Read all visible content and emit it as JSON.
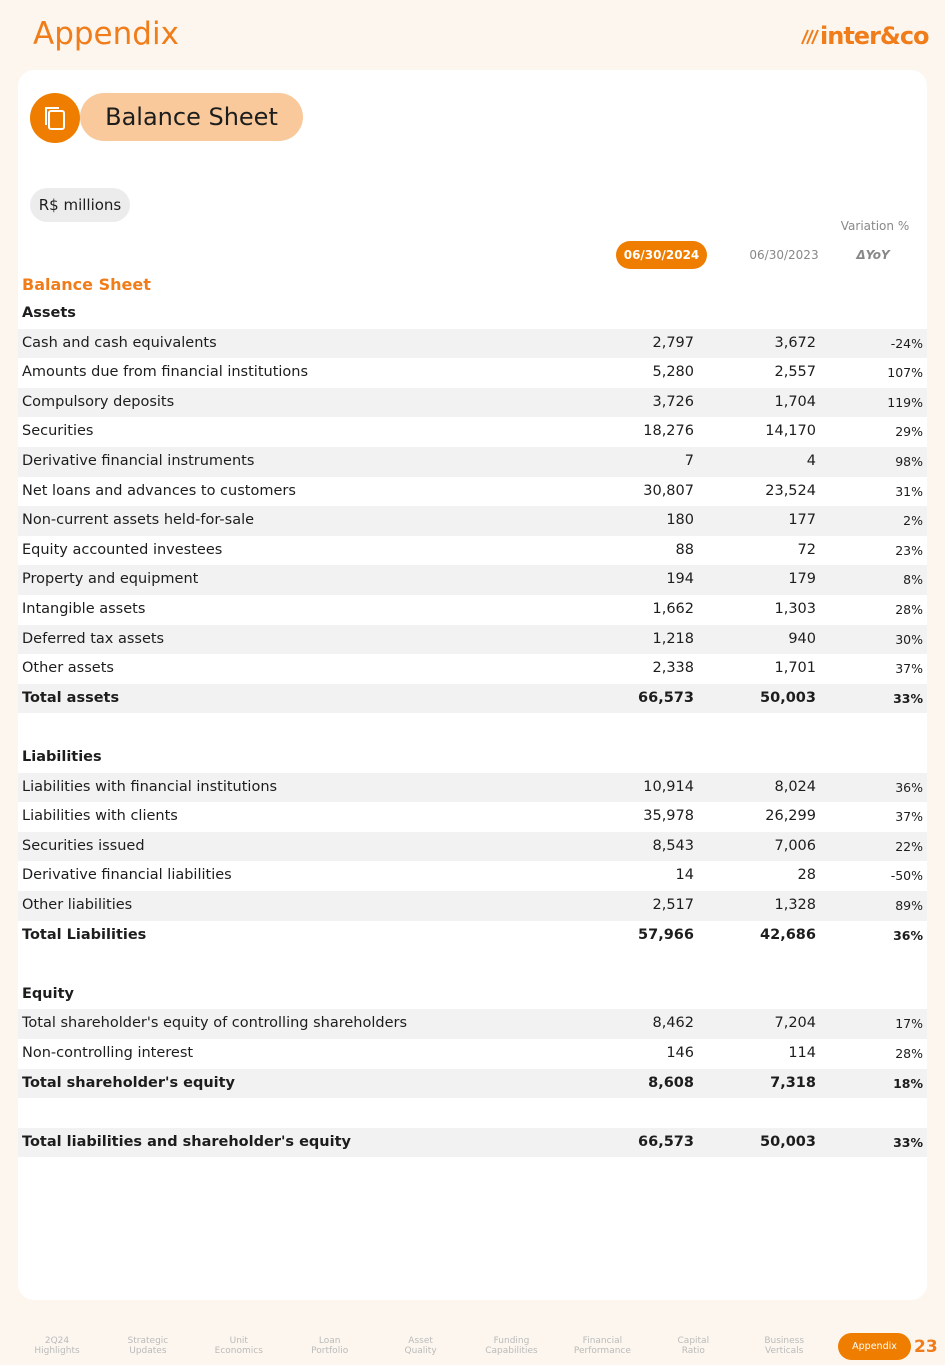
{
  "header": {
    "title": "Appendix",
    "logo": "inter&co"
  },
  "badge": "Balance Sheet",
  "unit": "R$ millions",
  "columns": {
    "variation_title": "Variation %",
    "current": "06/30/2024",
    "previous": "06/30/2023",
    "change": "ΔYoY"
  },
  "table": {
    "title": "Balance Sheet",
    "sections": [
      {
        "heading": "Assets",
        "rows": [
          [
            "Cash and cash equivalents",
            "2,797",
            "3,672",
            "-24%"
          ],
          [
            "Amounts due from financial institutions",
            "5,280",
            "2,557",
            "107%"
          ],
          [
            "Compulsory deposits",
            "3,726",
            "1,704",
            "119%"
          ],
          [
            "Securities",
            "18,276",
            "14,170",
            "29%"
          ],
          [
            "Derivative financial instruments",
            "7",
            "4",
            "98%"
          ],
          [
            "Net loans and advances to customers",
            "30,807",
            "23,524",
            "31%"
          ],
          [
            "Non-current assets held-for-sale",
            "180",
            "177",
            "2%"
          ],
          [
            "Equity accounted investees",
            "88",
            "72",
            "23%"
          ],
          [
            "Property and equipment",
            "194",
            "179",
            "8%"
          ],
          [
            "Intangible assets",
            "1,662",
            "1,303",
            "28%"
          ],
          [
            "Deferred tax assets",
            "1,218",
            "940",
            "30%"
          ],
          [
            "Other assets",
            "2,338",
            "1,701",
            "37%"
          ]
        ],
        "total": [
          "Total assets",
          "66,573",
          "50,003",
          "33%"
        ]
      },
      {
        "heading": "Liabilities",
        "rows": [
          [
            "Liabilities with financial institutions",
            "10,914",
            "8,024",
            "36%"
          ],
          [
            "Liabilities with clients",
            "35,978",
            "26,299",
            "37%"
          ],
          [
            "Securities issued",
            "8,543",
            "7,006",
            "22%"
          ],
          [
            "Derivative financial liabilities",
            "14",
            "28",
            "-50%"
          ],
          [
            "Other liabilities",
            "2,517",
            "1,328",
            "89%"
          ]
        ],
        "total": [
          "Total Liabilities",
          "57,966",
          "42,686",
          "36%"
        ]
      },
      {
        "heading": "Equity",
        "rows": [
          [
            "Total shareholder's equity of controlling shareholders",
            "8,462",
            "7,204",
            "17%"
          ],
          [
            "Non-controlling interest",
            "146",
            "114",
            "28%"
          ]
        ],
        "total": [
          "Total shareholder's equity",
          "8,608",
          "7,318",
          "18%"
        ]
      }
    ],
    "grand_total": [
      "Total liabilities and shareholder's equity",
      "66,573",
      "50,003",
      "33%"
    ]
  },
  "footer": {
    "nav": [
      [
        "2Q24",
        "Highlights"
      ],
      [
        "Strategic",
        "Updates"
      ],
      [
        "Unit",
        "Economics"
      ],
      [
        "Loan",
        "Portfolio"
      ],
      [
        "Asset",
        "Quality"
      ],
      [
        "Funding",
        "Capabilities"
      ],
      [
        "Financial",
        "Performance"
      ],
      [
        "Capital",
        "Ratio"
      ],
      [
        "Business",
        "Verticals"
      ]
    ],
    "active": "Appendix",
    "page": "23"
  }
}
